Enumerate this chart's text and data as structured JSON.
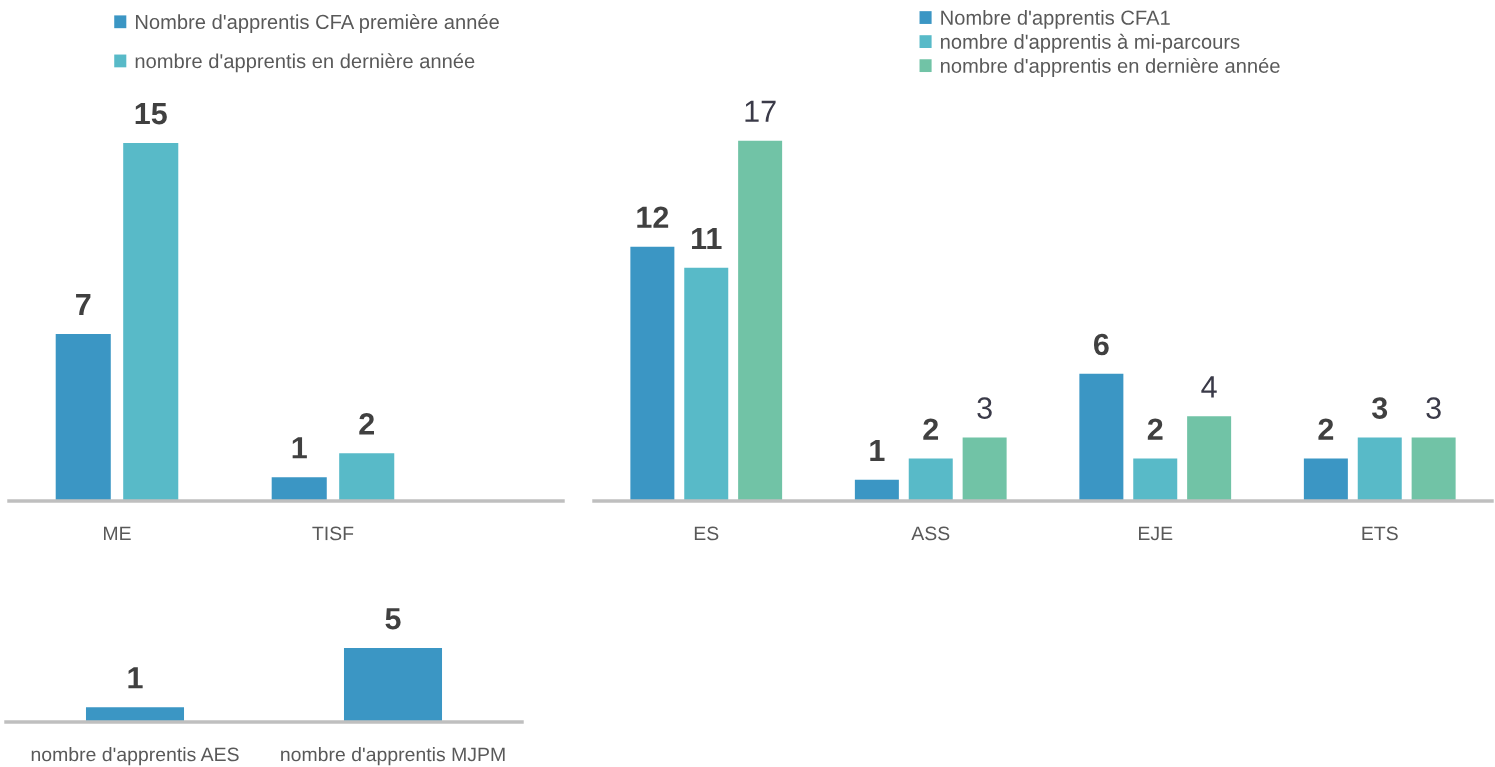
{
  "chart_data": [
    {
      "type": "bar",
      "categories": [
        "ME",
        "TISF"
      ],
      "series": [
        {
          "name": "Nombre d'apprentis CFA première année",
          "color": "#3b96c4",
          "values": [
            7,
            1
          ]
        },
        {
          "name": "nombre d'apprentis en dernière année",
          "color": "#58bac8",
          "values": [
            15,
            2
          ]
        }
      ],
      "data_labels": true,
      "legend": "top",
      "tick_labels": "x"
    },
    {
      "type": "bar",
      "categories": [
        "ES",
        "ASS",
        "EJE",
        "ETS"
      ],
      "series": [
        {
          "name": "Nombre d'apprentis CFA1",
          "color": "#3b96c4",
          "values": [
            12,
            1,
            6,
            2
          ]
        },
        {
          "name": "nombre d'apprentis à mi-parcours",
          "color": "#58bac8",
          "values": [
            11,
            2,
            2,
            3
          ]
        },
        {
          "name": "nombre d'apprentis en dernière année",
          "color": "#71c3a6",
          "values": [
            17,
            3,
            4,
            3
          ]
        }
      ],
      "data_labels": true,
      "legend": "top",
      "tick_labels": "x"
    },
    {
      "type": "bar",
      "categories": [
        "nombre d'apprentis AES",
        "nombre d'apprentis MJPM"
      ],
      "series": [
        {
          "color": "#3b96c4",
          "values": [
            1,
            5
          ]
        }
      ],
      "data_labels": true,
      "tick_labels": "x"
    }
  ]
}
